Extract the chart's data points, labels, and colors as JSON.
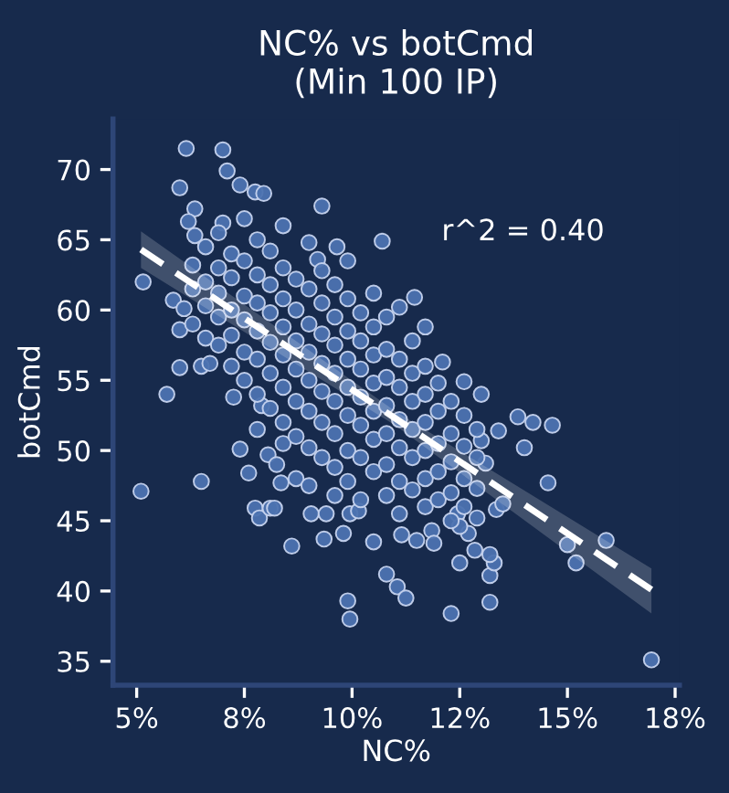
{
  "chart_data": {
    "type": "scatter",
    "title": "NC% vs botCmd\n(Min 100 IP)",
    "xlabel": "NC%",
    "ylabel": "botCmd",
    "xlim": [
      4.45,
      17.6
    ],
    "ylim": [
      33.3,
      73.6
    ],
    "xticks": [
      {
        "value": 5,
        "label": "5%"
      },
      {
        "value": 7.5,
        "label": "8%"
      },
      {
        "value": 10,
        "label": "10%"
      },
      {
        "value": 12.5,
        "label": "12%"
      },
      {
        "value": 15,
        "label": "15%"
      },
      {
        "value": 17.5,
        "label": "18%"
      }
    ],
    "yticks": [
      35,
      40,
      45,
      50,
      55,
      60,
      65,
      70
    ],
    "grid": false,
    "legend": false,
    "annotations": [
      "r^2 = 0.40"
    ],
    "series": [
      {
        "type": "scatter",
        "color": "#4c72b0",
        "marker": "circle",
        "x": [
          6.15,
          7.0,
          7.1,
          6.0,
          7.4,
          7.75,
          7.95,
          6.35,
          6.2,
          7.0,
          6.35,
          5.15,
          5.85,
          6.1,
          6.0,
          6.0,
          6.5,
          6.7,
          5.7,
          5.1,
          6.5,
          7.4,
          7.6,
          8.05,
          8.25,
          8.35,
          7.75,
          7.85,
          8.1,
          8.6,
          7.25,
          7.9,
          9.3,
          10.7,
          9.65,
          9.2,
          11.45,
          11.7,
          12.1,
          12.6,
          9.35,
          9.8,
          10.5,
          11.15,
          11.5,
          11.85,
          11.9,
          10.8,
          11.05,
          11.25,
          9.9,
          9.95,
          12.3,
          12.5,
          9.05,
          9.4,
          9.95,
          10.15,
          8.2,
          13.0,
          13.85,
          14.2,
          14.65,
          14.0,
          14.55,
          15.0,
          15.2,
          15.9,
          16.95,
          13.2,
          13.2,
          13.3,
          13.2,
          12.85,
          12.7,
          13.35,
          13.5,
          13.4,
          13.0,
          13.1,
          12.45,
          12.5,
          6.3,
          6.3,
          6.3,
          6.6,
          6.6,
          6.6,
          6.6,
          6.9,
          6.9,
          6.9,
          6.9,
          6.9,
          7.2,
          7.2,
          7.2,
          7.2,
          7.2,
          7.5,
          7.5,
          7.5,
          7.5,
          7.5,
          7.5,
          7.8,
          7.8,
          7.8,
          7.8,
          7.8,
          7.8,
          7.8,
          8.1,
          8.1,
          8.1,
          8.1,
          8.1,
          8.1,
          8.4,
          8.4,
          8.4,
          8.4,
          8.4,
          8.4,
          8.4,
          8.4,
          8.7,
          8.7,
          8.7,
          8.7,
          8.7,
          8.7,
          8.7,
          9.0,
          9.0,
          9.0,
          9.0,
          9.0,
          9.0,
          9.0,
          9.0,
          9.3,
          9.3,
          9.3,
          9.3,
          9.3,
          9.3,
          9.3,
          9.6,
          9.6,
          9.6,
          9.6,
          9.6,
          9.6,
          9.6,
          9.6,
          9.9,
          9.9,
          9.9,
          9.9,
          9.9,
          9.9,
          9.9,
          9.9,
          10.2,
          10.2,
          10.2,
          10.2,
          10.2,
          10.2,
          10.2,
          10.5,
          10.5,
          10.5,
          10.5,
          10.5,
          10.5,
          10.5,
          10.8,
          10.8,
          10.8,
          10.8,
          10.8,
          10.8,
          10.8,
          11.1,
          11.1,
          11.1,
          11.1,
          11.1,
          11.1,
          11.1,
          11.4,
          11.4,
          11.4,
          11.4,
          11.4,
          11.4,
          11.7,
          11.7,
          11.7,
          11.7,
          11.7,
          11.7,
          12.0,
          12.0,
          12.0,
          12.0,
          12.0,
          12.3,
          12.3,
          12.3,
          12.3,
          12.3,
          12.6,
          12.6,
          12.6,
          12.6,
          12.9,
          12.9,
          12.9,
          12.9
        ],
        "values": [
          71.5,
          71.4,
          69.9,
          68.7,
          68.9,
          68.4,
          68.3,
          67.2,
          66.3,
          66.2,
          65.3,
          62.0,
          60.7,
          60.1,
          58.6,
          55.9,
          56.0,
          56.2,
          54.0,
          47.1,
          47.8,
          50.1,
          48.4,
          49.7,
          49.0,
          47.7,
          45.9,
          45.2,
          45.9,
          43.2,
          53.8,
          53.2,
          67.4,
          64.9,
          64.5,
          63.6,
          60.9,
          58.8,
          56.3,
          54.9,
          43.7,
          44.1,
          43.5,
          44.0,
          43.6,
          44.3,
          43.4,
          41.2,
          40.3,
          39.5,
          39.3,
          38.0,
          38.4,
          42.0,
          45.5,
          45.5,
          45.5,
          45.7,
          45.9,
          54.0,
          52.4,
          52.0,
          51.8,
          50.2,
          47.7,
          43.3,
          42.0,
          43.6,
          35.1,
          39.2,
          41.1,
          42.0,
          42.6,
          42.9,
          44.1,
          45.8,
          46.2,
          51.4,
          50.7,
          49.1,
          45.5,
          44.6,
          63.2,
          61.5,
          59.0,
          64.5,
          62.0,
          60.3,
          58.0,
          65.5,
          63.0,
          61.2,
          59.5,
          57.5,
          64.0,
          62.3,
          60.0,
          58.2,
          56.0,
          66.5,
          63.5,
          61.0,
          59.3,
          57.0,
          55.0,
          65.0,
          62.5,
          60.5,
          58.5,
          56.5,
          54.0,
          51.5,
          64.2,
          61.8,
          59.8,
          57.7,
          55.5,
          53.0,
          66.0,
          63.0,
          60.8,
          58.8,
          56.8,
          54.5,
          52.0,
          50.5,
          62.2,
          60.0,
          57.8,
          55.8,
          53.5,
          51.0,
          48.0,
          64.8,
          61.5,
          59.0,
          57.0,
          55.0,
          52.8,
          50.2,
          47.5,
          62.8,
          60.5,
          58.3,
          56.2,
          54.2,
          52.0,
          49.5,
          61.8,
          59.5,
          57.5,
          55.5,
          53.5,
          51.2,
          48.8,
          46.8,
          63.5,
          60.8,
          58.5,
          56.5,
          54.5,
          52.5,
          50.0,
          47.8,
          59.8,
          57.8,
          55.8,
          53.8,
          51.8,
          49.5,
          46.5,
          61.2,
          58.8,
          56.8,
          54.8,
          52.8,
          50.8,
          48.5,
          59.5,
          57.2,
          55.2,
          53.2,
          51.2,
          49.0,
          46.8,
          60.2,
          56.5,
          54.5,
          52.2,
          50.2,
          47.8,
          45.5,
          57.8,
          55.5,
          53.5,
          51.5,
          49.5,
          47.2,
          56.0,
          54.0,
          52.0,
          50.0,
          48.0,
          46.0,
          54.8,
          52.8,
          50.5,
          48.5,
          46.5,
          53.5,
          51.2,
          49.2,
          47.0,
          45.0,
          52.5,
          50.3,
          48.0,
          46.0,
          51.5,
          49.5,
          47.3,
          45.2
        ]
      },
      {
        "type": "line",
        "color": "#ffffff",
        "line_style": "dashed",
        "marker": "none",
        "x": [
          5.1,
          11.0,
          16.95
        ],
        "values": [
          64.3,
          52.3,
          40.1
        ],
        "lower": [
          63.0,
          51.8,
          38.4
        ],
        "upper": [
          65.6,
          52.8,
          41.6
        ]
      }
    ]
  }
}
